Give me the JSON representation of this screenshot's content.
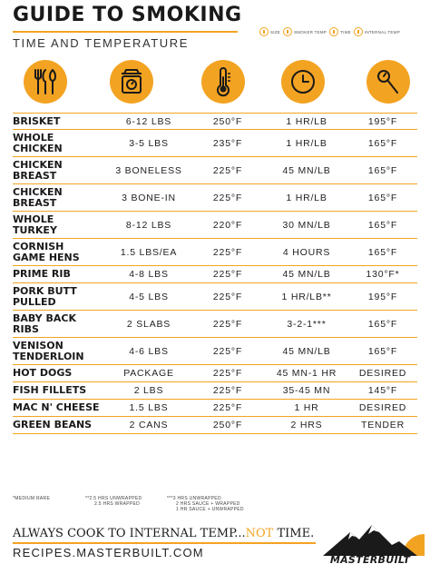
{
  "header": {
    "title": "GUIDE TO SMOKING",
    "subtitle": "TIME AND TEMPERATURE"
  },
  "legend": {
    "size": "SIZE",
    "smoker_temp": "SMOKER TEMP",
    "time": "TIME",
    "internal_temp": "INTERNAL TEMP"
  },
  "column_icons": [
    "utensils-icon",
    "scale-icon",
    "thermometer-icon",
    "clock-icon",
    "probe-thermometer-icon"
  ],
  "rows": [
    {
      "food": [
        "BRISKET"
      ],
      "size": "6-12 LBS",
      "smoker": "250°F",
      "time": "1 HR/LB",
      "internal": "195°F"
    },
    {
      "food": [
        "WHOLE",
        "CHICKEN"
      ],
      "size": "3-5 LBS",
      "smoker": "235°F",
      "time": "1 HR/LB",
      "internal": "165°F"
    },
    {
      "food": [
        "CHICKEN",
        "BREAST"
      ],
      "size": "3 BONELESS",
      "smoker": "225°F",
      "time": "45 MN/LB",
      "internal": "165°F"
    },
    {
      "food": [
        "CHICKEN",
        "BREAST"
      ],
      "size": "3 BONE-IN",
      "smoker": "225°F",
      "time": "1 HR/LB",
      "internal": "165°F"
    },
    {
      "food": [
        "WHOLE",
        "TURKEY"
      ],
      "size": "8-12 LBS",
      "smoker": "220°F",
      "time": "30 MN/LB",
      "internal": "165°F"
    },
    {
      "food": [
        "CORNISH",
        "GAME HENS"
      ],
      "size": "1.5 LBS/EA",
      "smoker": "225°F",
      "time": "4 HOURS",
      "internal": "165°F"
    },
    {
      "food": [
        "PRIME RIB"
      ],
      "size": "4-8 LBS",
      "smoker": "225°F",
      "time": "45 MN/LB",
      "internal": "130°F*"
    },
    {
      "food": [
        "PORK BUTT",
        "PULLED"
      ],
      "size": "4-5 LBS",
      "smoker": "225°F",
      "time": "1 HR/LB**",
      "internal": "195°F"
    },
    {
      "food": [
        "BABY BACK",
        "RIBS"
      ],
      "size": "2 SLABS",
      "smoker": "225°F",
      "time": "3-2-1***",
      "internal": "165°F"
    },
    {
      "food": [
        "VENISON",
        "TENDERLOIN"
      ],
      "size": "4-6 LBS",
      "smoker": "225°F",
      "time": "45 MN/LB",
      "internal": "165°F"
    },
    {
      "food": [
        "HOT DOGS"
      ],
      "size": "PACKAGE",
      "smoker": "225°F",
      "time": "45 MN-1 HR",
      "internal": "DESIRED"
    },
    {
      "food": [
        "FISH FILLETS"
      ],
      "size": "2 LBS",
      "smoker": "225°F",
      "time": "35-45 MN",
      "internal": "145°F"
    },
    {
      "food": [
        "MAC N' CHEESE"
      ],
      "size": "1.5 LBS",
      "smoker": "225°F",
      "time": "1 HR",
      "internal": "DESIRED"
    },
    {
      "food": [
        "GREEN BEANS"
      ],
      "size": "2 CANS",
      "smoker": "250°F",
      "time": "2 HRS",
      "internal": "TENDER"
    }
  ],
  "footnotes": {
    "medium_rare": "*MEDIUM RARE",
    "pork_butt": [
      "**2.5 HRS UNWRAPPED",
      "2.5 HRS WRAPPED"
    ],
    "ribs": [
      "***3 HRS UNWRAPPED",
      "2 HRS SAUCE + WRAPPED",
      "1 HR SAUCE + UNWRAPPED"
    ]
  },
  "footer": {
    "tagline_start": "ALWAYS COOK TO INTERNAL TEMP...",
    "tagline_accent": "NOT",
    "tagline_end": " TIME.",
    "website": "RECIPES.MASTERBUILT.COM",
    "brand": "MASTERBUILT"
  },
  "colors": {
    "accent": "#f3a322",
    "text": "#1a1a1a",
    "background": "#ffffff"
  }
}
